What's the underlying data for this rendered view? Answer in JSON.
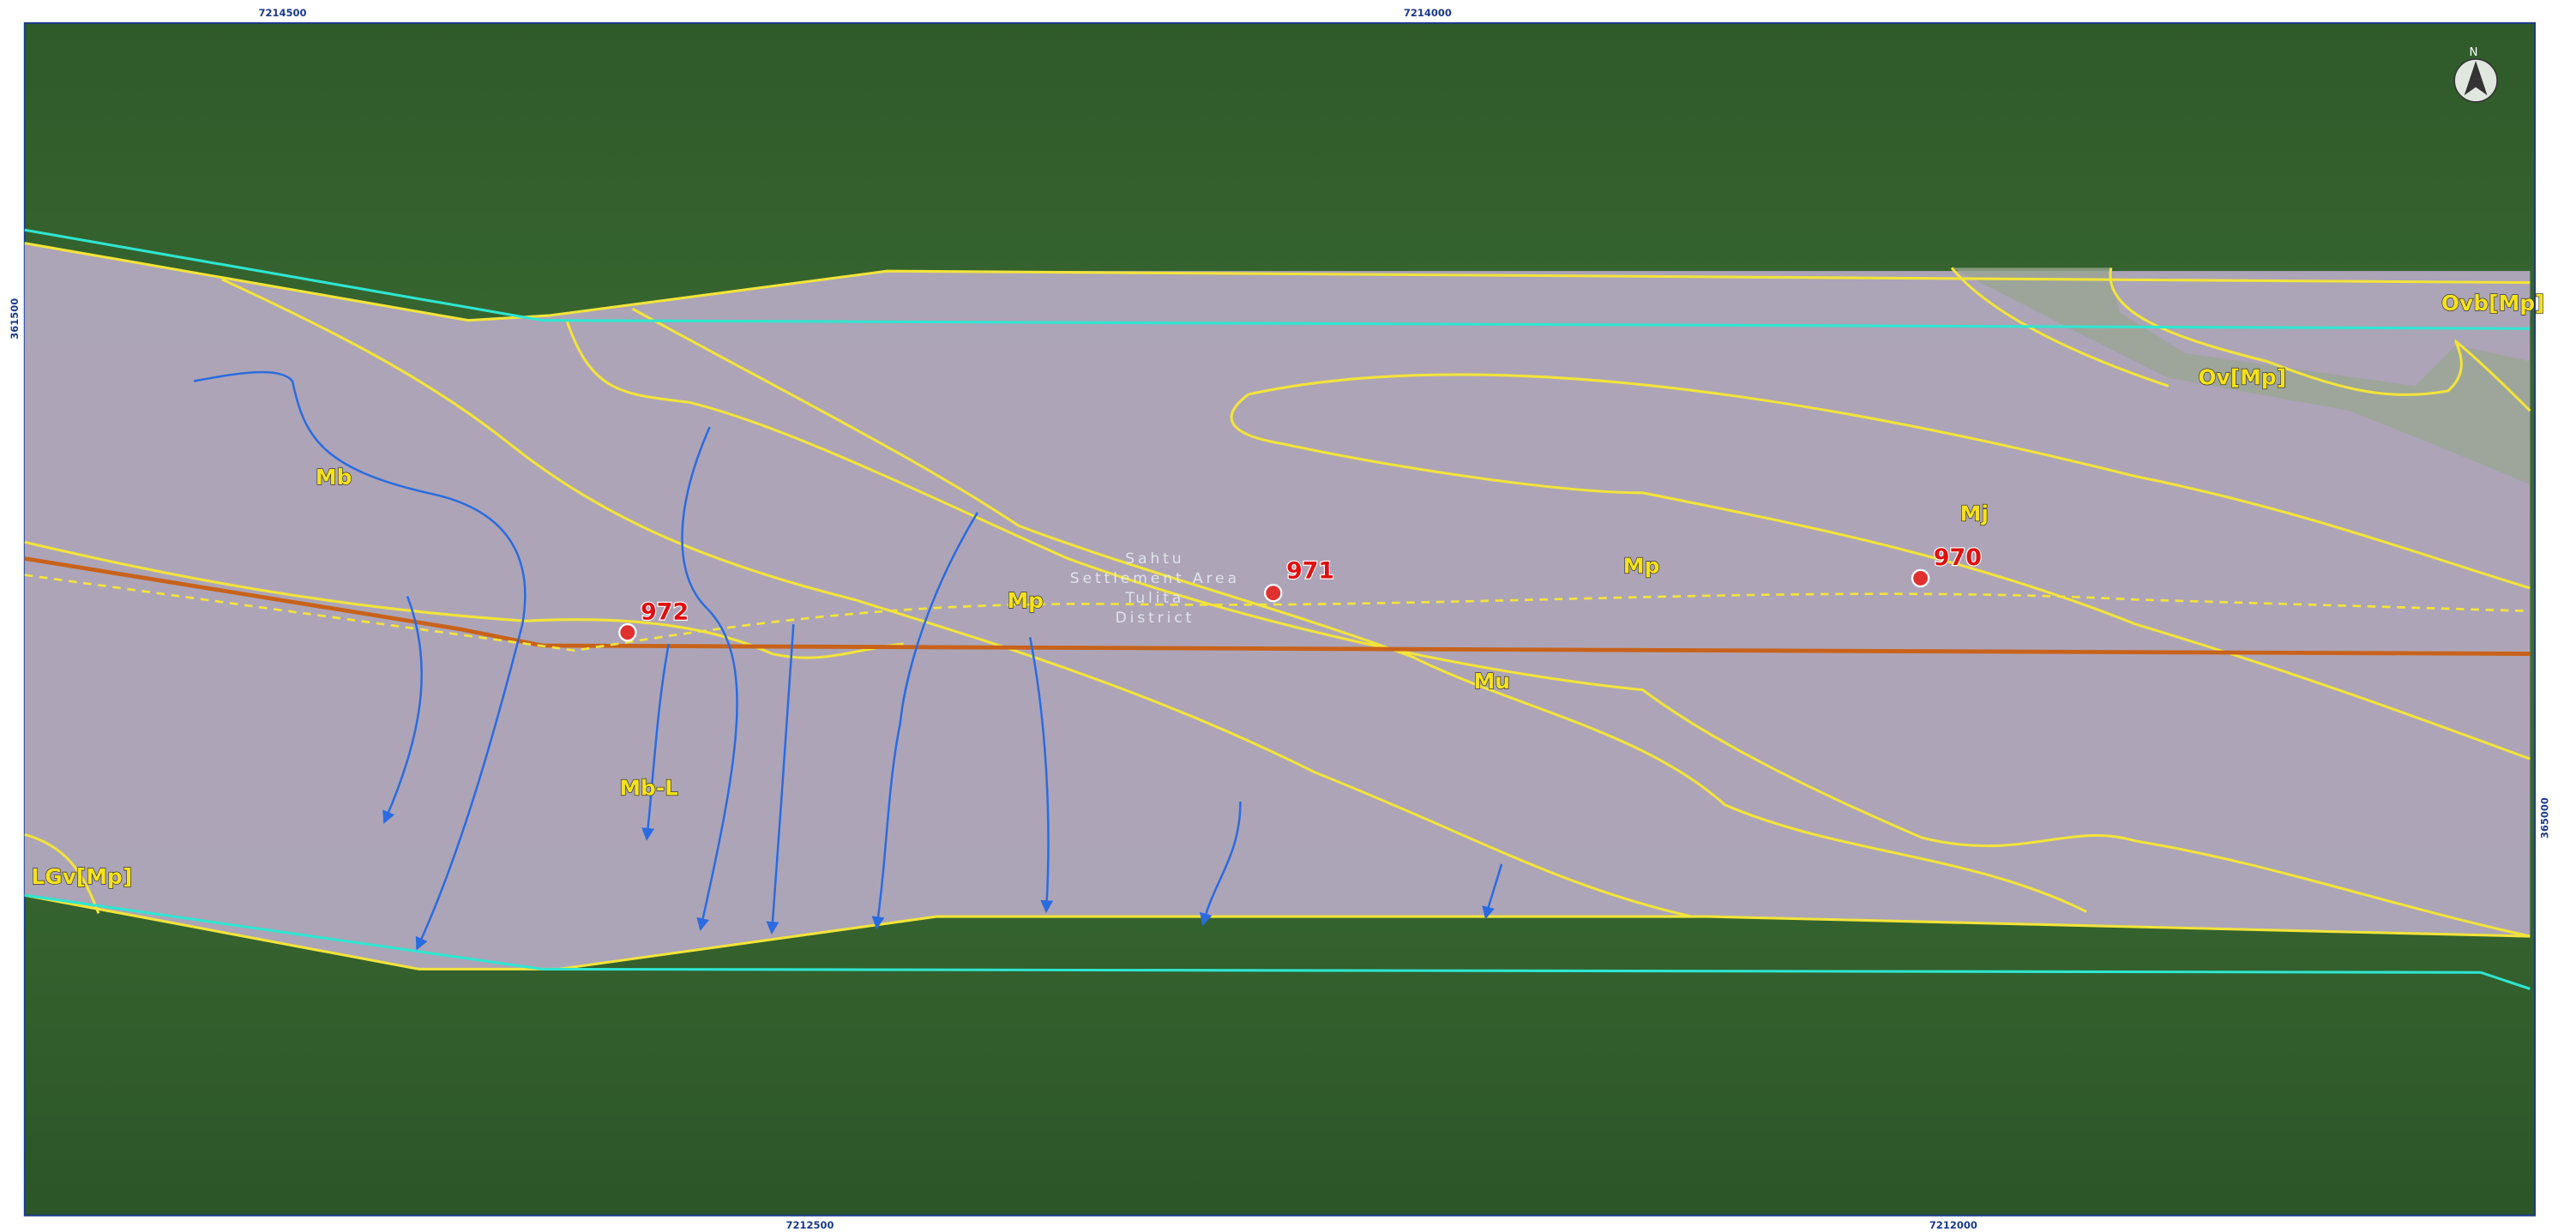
{
  "grid_labels": {
    "top": [
      "7214500",
      "7214000"
    ],
    "bottom": [
      "7212500",
      "7212000"
    ],
    "left": [
      "361500"
    ],
    "right": [
      "365000"
    ]
  },
  "north": "N",
  "units": [
    "Mb",
    "Mb-L",
    "Mp",
    "Mp",
    "Mu",
    "Mj",
    "Ov[Mp]",
    "Ovb[Mp]",
    "LGv[Mp]"
  ],
  "markers": [
    "972",
    "971",
    "970"
  ],
  "area_label": [
    "Sahtu",
    "Settlement Area",
    "Tulita",
    "District"
  ]
}
